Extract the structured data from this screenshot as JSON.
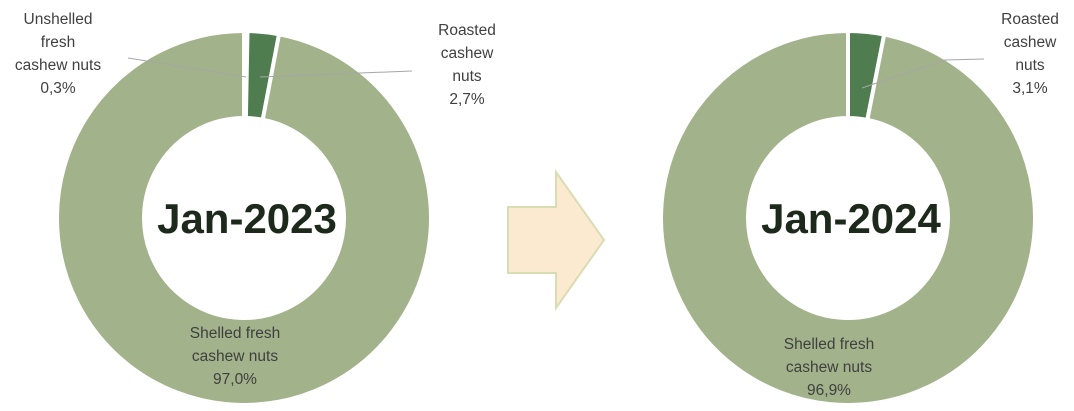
{
  "colors": {
    "shelled": "#a2b28a",
    "roasted": "#4f7d50",
    "unshelled": "#8fa07a",
    "leader": "#a6a6a6",
    "arrow_fill": "#fbe9d0",
    "arrow_stroke": "#d9ddb4"
  },
  "chart_data": [
    {
      "type": "pie",
      "center_label": "Jan-2023",
      "slices": [
        {
          "key": "unshelled",
          "label_lines": [
            "Unshelled",
            "fresh",
            "cashew nuts",
            "0,3%"
          ],
          "value": 0.3
        },
        {
          "key": "roasted",
          "label_lines": [
            "Roasted",
            "cashew",
            "nuts",
            "2,7%"
          ],
          "value": 2.7
        },
        {
          "key": "shelled",
          "label_lines": [
            "Shelled fresh",
            "cashew nuts",
            "97,0%"
          ],
          "value": 97.0
        }
      ]
    },
    {
      "type": "pie",
      "center_label": "Jan-2024",
      "slices": [
        {
          "key": "roasted",
          "label_lines": [
            "Roasted",
            "cashew",
            "nuts",
            "3,1%"
          ],
          "value": 3.1
        },
        {
          "key": "shelled",
          "label_lines": [
            "Shelled fresh",
            "cashew nuts",
            "96,9%"
          ],
          "value": 96.9
        }
      ]
    }
  ]
}
